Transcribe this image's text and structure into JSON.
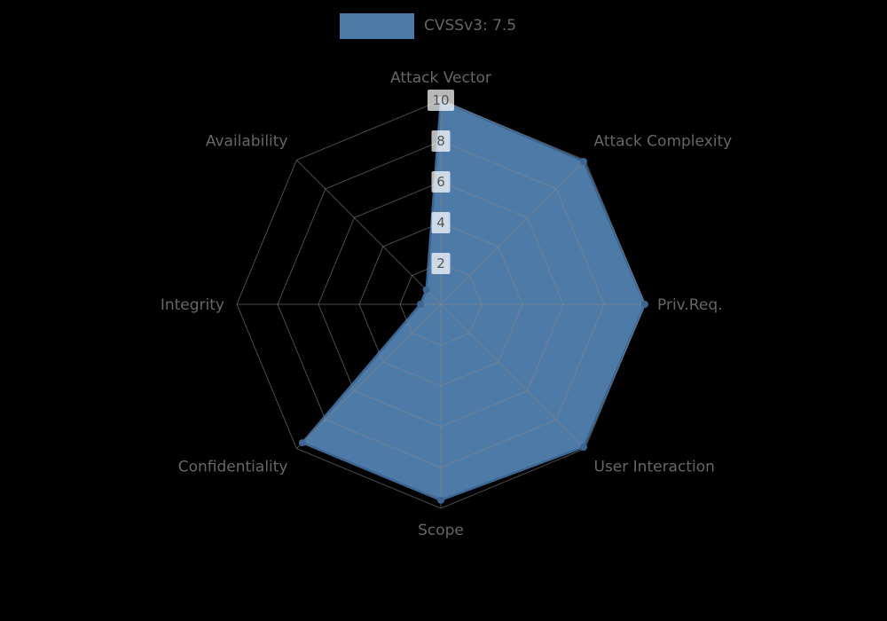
{
  "legend": {
    "label": "CVSSv3: 7.5",
    "swatch_color": "#4e7aa8"
  },
  "chart_data": {
    "type": "radar",
    "title": "CVSSv3: 7.5",
    "categories": [
      "Attack Vector",
      "Attack Complexity",
      "Priv.Req.",
      "User Interaction",
      "Scope",
      "Confidentiality",
      "Integrity",
      "Availability"
    ],
    "series": [
      {
        "name": "CVSSv3: 7.5",
        "values": [
          10,
          9.9,
          10,
          9.9,
          9.6,
          9.6,
          1,
          1
        ]
      }
    ],
    "radial_ticks": [
      2,
      4,
      6,
      8,
      10
    ],
    "rlim": [
      0,
      10
    ],
    "grid": true,
    "legend_position": "top-center",
    "styles": {
      "fill_color": "#4e7aa8",
      "edge_color": "#3c6591",
      "grid_color": "rgba(135,135,135,0.55)",
      "background_color": "#000000",
      "label_color": "#666666",
      "tick_text_color": "#555555",
      "tick_box_color": "rgba(255,255,255,0.72)"
    }
  }
}
